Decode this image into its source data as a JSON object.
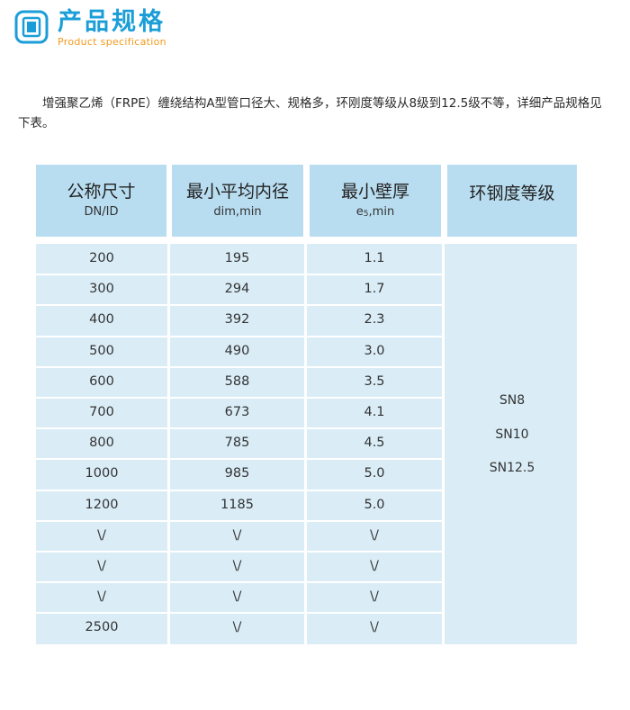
{
  "header": {
    "icon": "document-square-icon",
    "title_cn": "产品规格",
    "title_en": "Product specification",
    "colors": {
      "title": "#1b9ed8",
      "subtitle": "#f39a1c",
      "header_cell": "#b9ddf0",
      "body_cell": "#daedf7"
    }
  },
  "intro": "增强聚乙烯（FRPE）缠绕结构A型管口径大、规格多，环刚度等级从8级到12.5级不等，详细产品规格见下表。",
  "table": {
    "headers": [
      {
        "main": "公称尺寸",
        "sub": "DN/ID"
      },
      {
        "main": "最小平均内径",
        "sub": "dim,min"
      },
      {
        "main": "最小壁厚",
        "sub_prefix": "e",
        "sub_subscript": "5",
        "sub_suffix": ",min"
      },
      {
        "main": "环钢度等级"
      }
    ],
    "rows": [
      [
        "200",
        "195",
        "1.1"
      ],
      [
        "300",
        "294",
        "1.7"
      ],
      [
        "400",
        "392",
        "2.3"
      ],
      [
        "500",
        "490",
        "3.0"
      ],
      [
        "600",
        "588",
        "3.5"
      ],
      [
        "700",
        "673",
        "4.1"
      ],
      [
        "800",
        "785",
        "4.5"
      ],
      [
        "1000",
        "985",
        "5.0"
      ],
      [
        "1200",
        "1185",
        "5.0"
      ],
      [
        "\\/",
        "\\/",
        "\\/"
      ],
      [
        "\\/",
        "\\/",
        "\\/"
      ],
      [
        "\\/",
        "\\/",
        "\\/"
      ],
      [
        "2500",
        "\\/",
        "\\/"
      ]
    ],
    "stiffness_grades": [
      "SN8",
      "SN10",
      "SN12.5"
    ]
  }
}
